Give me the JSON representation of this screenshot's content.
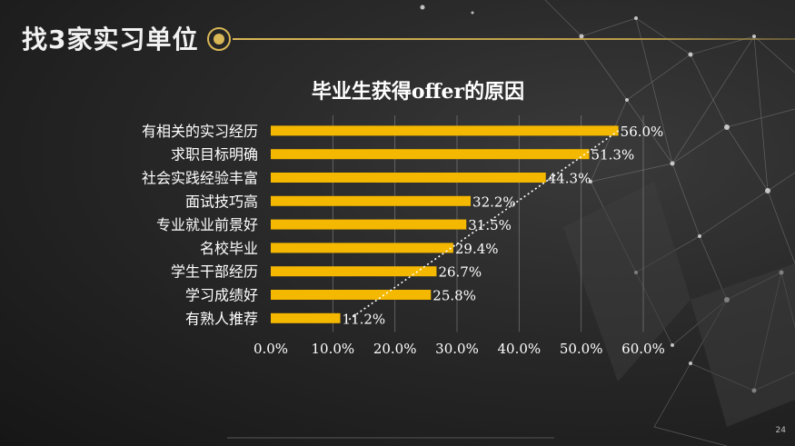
{
  "slide": {
    "title": "找3家实习单位",
    "page_number": "24"
  },
  "colors": {
    "bar": "#f5b800",
    "text": "#ffffff",
    "accent": "#d9b656",
    "grid": "#9a9a9a"
  },
  "chart_data": {
    "type": "bar",
    "orientation": "horizontal",
    "title": "毕业生获得offer的原因",
    "categories": [
      "有相关的实习经历",
      "求职目标明确",
      "社会实践经验丰富",
      "面试技巧高",
      "专业就业前景好",
      "名校毕业",
      "学生干部经历",
      "学习成绩好",
      "有熟人推荐"
    ],
    "values": [
      56.0,
      51.3,
      44.3,
      32.2,
      31.5,
      29.4,
      26.7,
      25.8,
      11.2
    ],
    "value_labels": [
      "56.0%",
      "51.3%",
      "44.3%",
      "32.2%",
      "31.5%",
      "29.4%",
      "26.7%",
      "25.8%",
      "11.2%"
    ],
    "x_ticks": [
      "0.0%",
      "10.0%",
      "20.0%",
      "30.0%",
      "40.0%",
      "50.0%",
      "60.0%"
    ],
    "xlim": [
      0,
      60
    ],
    "grid": true,
    "trendline": "dotted"
  }
}
